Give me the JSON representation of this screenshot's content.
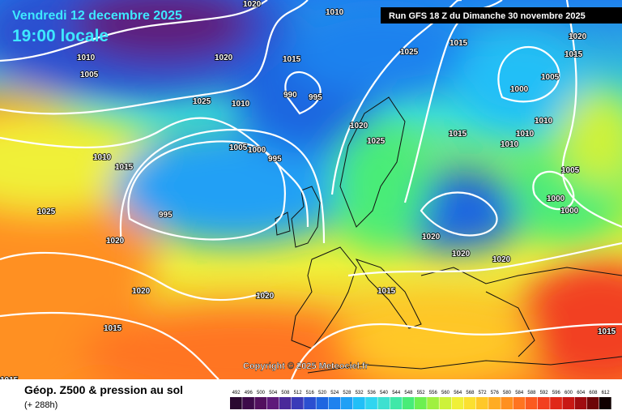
{
  "header": {
    "date": "Vendredi 12 decembre 2025",
    "time": "19:00 locale",
    "run": "Run GFS 18 Z du Dimanche 30 novembre 2025"
  },
  "copyright": "Copyright © 2025 Meteociel.fr",
  "legend": {
    "title": "Géop. Z500 & pression au sol",
    "lead": "(+ 288h)",
    "values": [
      "492",
      "496",
      "500",
      "504",
      "508",
      "512",
      "516",
      "520",
      "524",
      "528",
      "532",
      "536",
      "540",
      "544",
      "548",
      "552",
      "556",
      "560",
      "564",
      "568",
      "572",
      "576",
      "580",
      "584",
      "588",
      "592",
      "596",
      "600",
      "604",
      "608",
      "612"
    ],
    "colors": [
      "#2a0830",
      "#3d0a4a",
      "#52105e",
      "#5e1a7a",
      "#4a2a9a",
      "#3a3ab8",
      "#2b4fd0",
      "#1f66e0",
      "#1f82ee",
      "#20a0f5",
      "#22bff7",
      "#30d5f0",
      "#3ee0d0",
      "#40e8a8",
      "#48ec78",
      "#6cf050",
      "#a0f040",
      "#cdf23a",
      "#f0f038",
      "#fbe030",
      "#ffc828",
      "#ffac22",
      "#ff9020",
      "#ff7420",
      "#fb5a20",
      "#f24020",
      "#e02818",
      "#c81814",
      "#a00c10",
      "#6e0508",
      "#100000"
    ]
  },
  "isobar_labels": [
    "1020",
    "1010",
    "1015",
    "1020",
    "1015",
    "1010",
    "1005",
    "1025",
    "1020",
    "1015",
    "1010",
    "990",
    "995",
    "1000",
    "1005",
    "1025",
    "1020",
    "1025",
    "1015",
    "1010",
    "1010",
    "1010",
    "1005",
    "1000",
    "995",
    "1010",
    "1015",
    "1025",
    "995",
    "1020",
    "1005",
    "1000",
    "1000",
    "1020",
    "1020",
    "1020",
    "1015",
    "1020",
    "1020",
    "1015",
    "1015",
    "1015"
  ]
}
